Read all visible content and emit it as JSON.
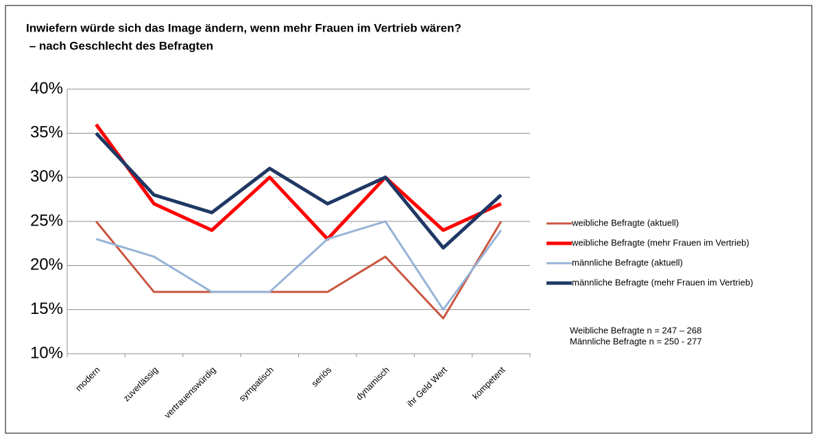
{
  "chart_data": {
    "type": "line",
    "title": "Inwiefern würde sich das Image ändern, wenn mehr Frauen im Vertrieb wären?",
    "subtitle": " – nach Geschlecht des Befragten",
    "categories": [
      "modern",
      "zuverlässig",
      "vertrauenswürdig",
      "sympatisch",
      "seriös",
      "dynamisch",
      "ihr Geld Wert",
      "kompetent"
    ],
    "series": [
      {
        "name": "weibliche Befragte (aktuell)",
        "color": "#c9553f",
        "width": 3,
        "values": [
          25,
          17,
          17,
          17,
          17,
          21,
          14,
          25
        ]
      },
      {
        "name": "weibliche Befragte (mehr Frauen im Vertrieb)",
        "color": "#ff0000",
        "width": 5,
        "values": [
          36,
          27,
          24,
          30,
          23,
          30,
          24,
          27
        ]
      },
      {
        "name": "männliche Befragte (aktuell)",
        "color": "#95b3d7",
        "width": 3,
        "values": [
          23,
          21,
          17,
          17,
          23,
          25,
          15,
          24
        ]
      },
      {
        "name": "männliche Befragte (mehr Frauen im Vertrieb)",
        "color": "#1f3864",
        "width": 5,
        "values": [
          35,
          28,
          26,
          31,
          27,
          30,
          22,
          28
        ]
      }
    ],
    "ylim": [
      10,
      40
    ],
    "yticks": [
      {
        "value": 10,
        "label": "10%"
      },
      {
        "value": 15,
        "label": "15%"
      },
      {
        "value": 20,
        "label": "20%"
      },
      {
        "value": 25,
        "label": "25%"
      },
      {
        "value": 30,
        "label": "30%"
      },
      {
        "value": 35,
        "label": "35%"
      },
      {
        "value": 40,
        "label": "40%"
      }
    ],
    "grid": true,
    "legend": "right",
    "annotations": [
      "Weibliche Befragte n = 247 – 268",
      "Männliche Befragte n = 250 - 277"
    ]
  }
}
